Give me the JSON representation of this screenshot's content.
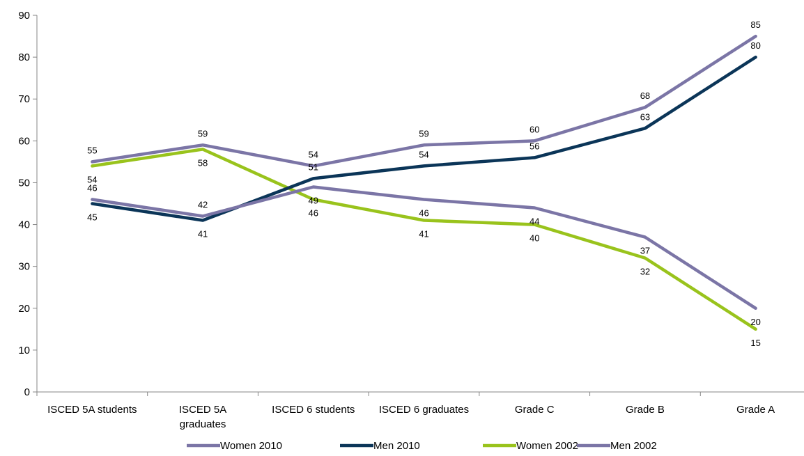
{
  "chart_data": {
    "type": "line",
    "title": "",
    "xlabel": "",
    "ylabel": "",
    "ylim": [
      0,
      90
    ],
    "yticks": [
      0,
      10,
      20,
      30,
      40,
      50,
      60,
      70,
      80,
      90
    ],
    "grid": false,
    "legend_position": "bottom",
    "categories": [
      [
        "ISCED 5A students"
      ],
      [
        "ISCED 5A",
        "graduates"
      ],
      [
        "ISCED 6 students"
      ],
      [
        "ISCED 6 graduates"
      ],
      [
        "Grade C"
      ],
      [
        "Grade B"
      ],
      [
        "Grade A"
      ]
    ],
    "series": [
      {
        "name": "Women 2010",
        "color": "#7b75a6",
        "values": [
          46,
          42,
          49,
          46,
          44,
          37,
          20
        ]
      },
      {
        "name": "Men 2010",
        "color": "#0b3558",
        "values": [
          45,
          41,
          51,
          54,
          56,
          63,
          80
        ]
      },
      {
        "name": "Women 2002",
        "color": "#99c31c",
        "values": [
          54,
          58,
          46,
          41,
          40,
          32,
          15
        ]
      },
      {
        "name": "Men 2002",
        "color": "#7b75a6",
        "values": [
          55,
          59,
          54,
          59,
          60,
          68,
          85
        ]
      }
    ]
  }
}
